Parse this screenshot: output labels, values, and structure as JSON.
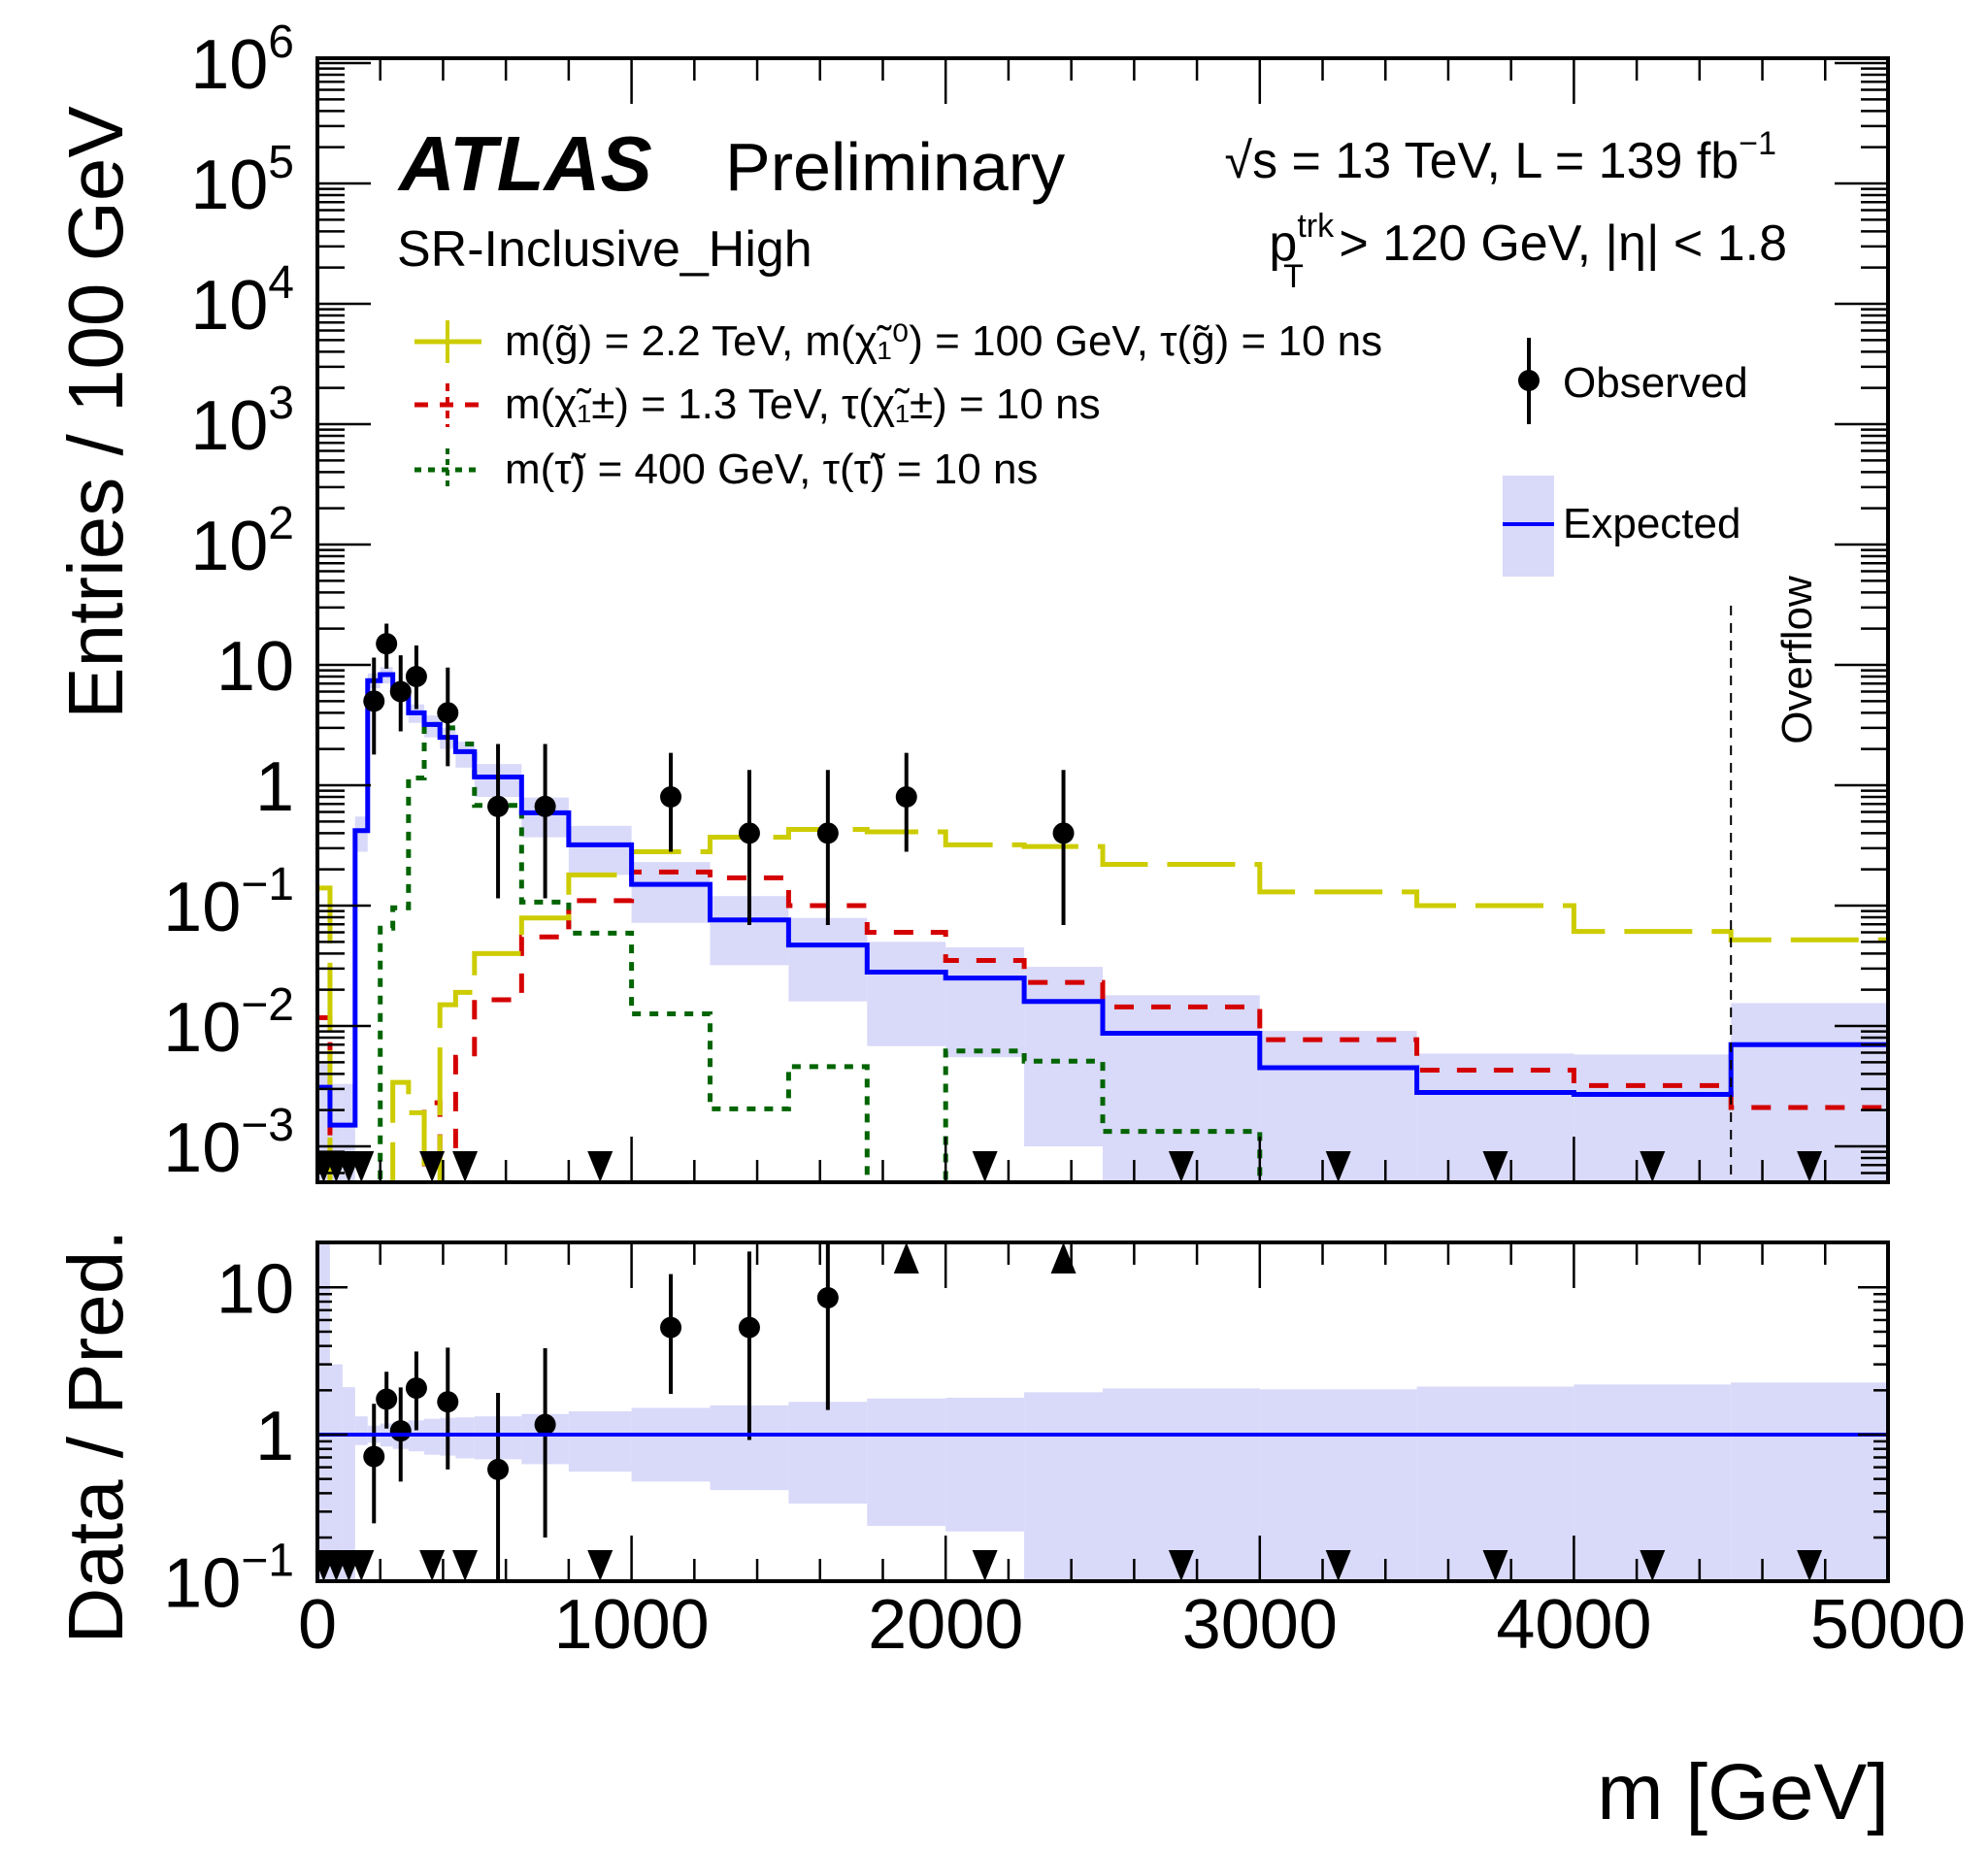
{
  "header": {
    "experiment": "ATLAS",
    "status": "Preliminary",
    "energy_lumi": "√s = 13 TeV,  L = 139 fb",
    "lumi_exp": "−1",
    "region": "SR-Inclusive_High",
    "cut_p": "p",
    "cut_sup": "trk",
    "cut_sub": "T",
    "cut_rest": " > 120 GeV, |η| < 1.8",
    "overflow": "Overflow"
  },
  "legend": {
    "gluino": "m(g̃) = 2.2 TeV, m(χ̃₁⁰) = 100 GeV, τ(g̃) = 10 ns",
    "chargino": "m(χ̃₁±) = 1.3 TeV, τ(χ̃₁±) = 10 ns",
    "stau": "m(τ̃) =  400 GeV, τ(τ̃) = 10 ns",
    "observed": "Observed",
    "expected": "Expected"
  },
  "chart_data": [
    {
      "type": "histogram",
      "panel": "main",
      "ylabel": "Entries / 100 GeV",
      "yscale": "log",
      "ylim": [
        0.0005,
        1000000
      ],
      "xlim": [
        0,
        5000
      ],
      "ytick_labels": [
        {
          "base": "10",
          "exp": "−3"
        },
        {
          "base": "10",
          "exp": "−2"
        },
        {
          "base": "10",
          "exp": "−1"
        },
        {
          "base": "1",
          "exp": ""
        },
        {
          "base": "10",
          "exp": ""
        },
        {
          "base": "10",
          "exp": "2"
        },
        {
          "base": "10",
          "exp": "3"
        },
        {
          "base": "10",
          "exp": "4"
        },
        {
          "base": "10",
          "exp": "5"
        },
        {
          "base": "10",
          "exp": "6"
        }
      ],
      "bin_edges": [
        0,
        40,
        80,
        120,
        160,
        200,
        240,
        290,
        340,
        390,
        440,
        500,
        650,
        800,
        1000,
        1250,
        1500,
        1750,
        2000,
        2250,
        2500,
        3000,
        3500,
        4000,
        4500,
        5000
      ],
      "expected": [
        0.0031,
        0.0015,
        0.0015,
        0.42,
        7.4,
        8.3,
        6.2,
        4.0,
        3.2,
        2.5,
        1.9,
        1.17,
        0.59,
        0.32,
        0.15,
        0.076,
        0.047,
        0.028,
        0.025,
        0.016,
        0.0087,
        0.0045,
        0.0028,
        0.0027,
        0.007
      ],
      "expected_band_high": [
        0.005,
        0.0033,
        0.0033,
        0.55,
        8.5,
        9.6,
        7.2,
        4.7,
        3.8,
        3.0,
        2.3,
        1.5,
        0.79,
        0.46,
        0.23,
        0.12,
        0.079,
        0.05,
        0.045,
        0.031,
        0.018,
        0.0091,
        0.0059,
        0.0058,
        0.0155
      ],
      "expected_band_low": [
        0,
        0,
        0,
        0.28,
        6.4,
        7.0,
        5.2,
        3.3,
        2.5,
        2.0,
        1.4,
        0.8,
        0.37,
        0.18,
        0.072,
        0.032,
        0.016,
        0.0068,
        0.0055,
        0.001,
        0,
        0,
        0,
        0,
        0
      ],
      "signal_gluino": [
        0.14,
        0,
        0,
        0,
        0,
        0,
        0.0034,
        0.0019,
        0,
        0.015,
        0.019,
        0.04,
        0.079,
        0.18,
        0.28,
        0.37,
        0.43,
        0.41,
        0.32,
        0.31,
        0.22,
        0.13,
        0.1,
        0.061,
        0.052
      ],
      "signal_chargino": [
        0.0117,
        0,
        0,
        0,
        0,
        0,
        0,
        0,
        0.0023,
        0.0009,
        0.0055,
        0.0165,
        0.055,
        0.11,
        0.19,
        0.17,
        0.1,
        0.06,
        0.035,
        0.023,
        0.0144,
        0.0077,
        0.0043,
        0.0032,
        0.0021
      ],
      "signal_stau": [
        0,
        0,
        0,
        0,
        0,
        0.065,
        0.096,
        1.15,
        3.2,
        3.0,
        2.2,
        0.68,
        0.107,
        0.059,
        0.0126,
        0.00205,
        0.0046,
        0,
        0.0062,
        0.0051,
        0.00133,
        0,
        0,
        0,
        0
      ],
      "observed": [
        0,
        0,
        0,
        0,
        5,
        15,
        6,
        8,
        0,
        4,
        0,
        0.667,
        0.667,
        0,
        0.8,
        0.4,
        0.4,
        0.8,
        0,
        0.4,
        0,
        0,
        0,
        0,
        0
      ],
      "observed_err_high": [
        0,
        0,
        0,
        0,
        11.5,
        22,
        12,
        14.5,
        0,
        9.5,
        0,
        2.2,
        2.2,
        0,
        1.86,
        1.34,
        1.34,
        1.86,
        0,
        1.34,
        0,
        0,
        0,
        0,
        0
      ],
      "observed_err_low": [
        0,
        0,
        0,
        0,
        1.8,
        9.3,
        2.8,
        4.3,
        0,
        1.44,
        0,
        0.115,
        0.115,
        0,
        0.28,
        0.069,
        0.069,
        0.28,
        0,
        0.069,
        0,
        0,
        0,
        0,
        0
      ],
      "overflow_edge": 4500,
      "colors": {
        "expected": "#0000ff",
        "band": "#d9d9f9",
        "gluino": "#cccc00",
        "chargino": "#d40000",
        "stau": "#006400",
        "observed": "#000000"
      }
    },
    {
      "type": "ratio",
      "panel": "ratio",
      "ylabel": "Data / Pred.",
      "xlabel": "m [GeV]",
      "yscale": "log",
      "ylim": [
        0.1,
        20
      ],
      "xlim": [
        0,
        5000
      ],
      "ytick_labels": [
        {
          "base": "10",
          "exp": "−1"
        },
        {
          "base": "1",
          "exp": ""
        },
        {
          "base": "10",
          "exp": ""
        }
      ],
      "xtick_labels": [
        "0",
        "1000",
        "2000",
        "3000",
        "4000",
        "5000"
      ],
      "ratio": [
        0,
        0,
        0,
        0,
        0.71,
        1.74,
        1.06,
        2.07,
        0,
        1.67,
        0,
        0.58,
        1.17,
        0,
        5.34,
        5.34,
        8.5,
        null,
        0,
        null,
        0,
        0,
        0,
        0,
        0
      ],
      "ratio_err_high": [
        0,
        0,
        0,
        0,
        1.62,
        2.67,
        2.09,
        3.67,
        0,
        3.9,
        0,
        1.92,
        3.86,
        0,
        12.3,
        17.5,
        25,
        0,
        0,
        0,
        0,
        0,
        0,
        0,
        0
      ],
      "ratio_err_low": [
        0,
        0,
        0,
        0,
        0.25,
        1.1,
        0.48,
        1.07,
        0,
        0.58,
        0,
        0,
        0.2,
        0,
        1.89,
        0.92,
        1.47,
        0,
        0,
        0,
        0,
        0,
        0,
        0,
        0
      ],
      "offscale_up_bins": [
        17,
        19
      ],
      "band_high": [
        20,
        3.0,
        2.1,
        1.33,
        1.15,
        1.19,
        1.22,
        1.25,
        1.28,
        1.3,
        1.31,
        1.33,
        1.38,
        1.44,
        1.52,
        1.58,
        1.67,
        1.76,
        1.78,
        1.94,
        2.06,
        2.03,
        2.12,
        2.19,
        2.26
      ],
      "band_low": [
        0.1,
        0.1,
        0.1,
        0.85,
        0.88,
        0.83,
        0.8,
        0.77,
        0.73,
        0.72,
        0.69,
        0.68,
        0.63,
        0.56,
        0.48,
        0.42,
        0.34,
        0.24,
        0.22,
        0.1,
        0.1,
        0.1,
        0.1,
        0.1,
        0.1
      ],
      "reference_line": 1
    }
  ]
}
